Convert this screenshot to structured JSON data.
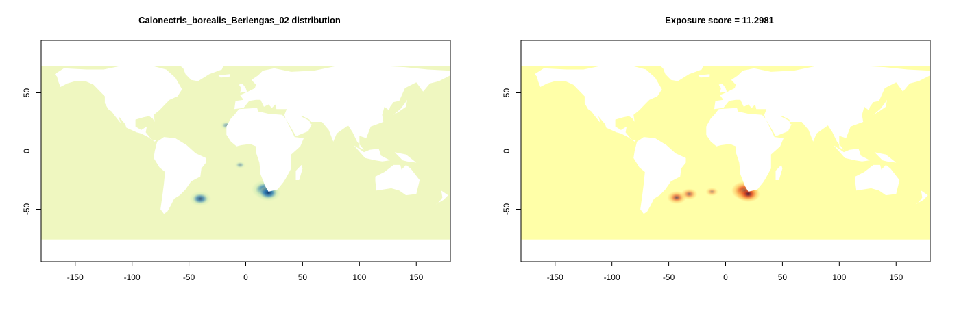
{
  "chart_data": [
    {
      "type": "heatmap",
      "title": "Calonectris_borealis_Berlengas_02 distribution",
      "xlabel": "",
      "ylabel": "",
      "xlim": [
        -180,
        180
      ],
      "ylim": [
        -95,
        95
      ],
      "xticks": [
        -150,
        -100,
        -50,
        0,
        50,
        100,
        150
      ],
      "yticks": [
        -50,
        0,
        50
      ],
      "colors": {
        "ocean": "#eff7c0",
        "land": "#ffffff",
        "low": "#c8e9b4",
        "mid": "#2f7fb6",
        "high": "#08306b"
      },
      "hotspots": [
        {
          "lon": 17,
          "lat": -33,
          "intensity": 1.0
        },
        {
          "lon": 20,
          "lat": -36,
          "intensity": 0.85
        },
        {
          "lon": -40,
          "lat": -41,
          "intensity": 0.7
        },
        {
          "lon": -17,
          "lat": 22,
          "intensity": 0.2
        },
        {
          "lon": -5,
          "lat": -12,
          "intensity": 0.12
        }
      ]
    },
    {
      "type": "heatmap",
      "title": "Exposure score = 11.2981",
      "xlabel": "",
      "ylabel": "",
      "xlim": [
        -180,
        180
      ],
      "ylim": [
        -95,
        95
      ],
      "xticks": [
        -150,
        -100,
        -50,
        0,
        50,
        100,
        150
      ],
      "yticks": [
        -50,
        0,
        50
      ],
      "colors": {
        "ocean": "#ffffa8",
        "land": "#ffffff",
        "low": "#feb24c",
        "mid": "#e34a1f",
        "high": "#2b0a3b"
      },
      "hotspots": [
        {
          "lon": 17,
          "lat": -34,
          "intensity": 1.0
        },
        {
          "lon": 20,
          "lat": -37,
          "intensity": 0.8
        },
        {
          "lon": -43,
          "lat": -40,
          "intensity": 0.55
        },
        {
          "lon": -32,
          "lat": -37,
          "intensity": 0.4
        },
        {
          "lon": -12,
          "lat": -35,
          "intensity": 0.2
        }
      ]
    }
  ]
}
